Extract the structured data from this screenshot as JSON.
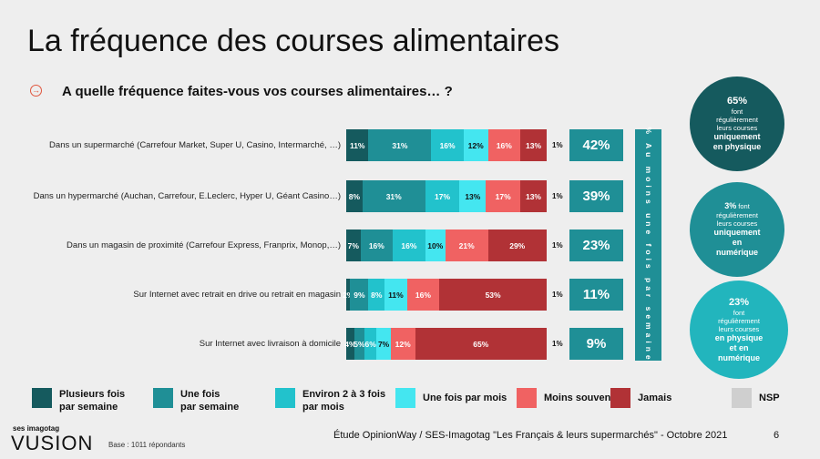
{
  "title": "La fréquence des courses alimentaires",
  "question": "A quelle fréquence faites-vous vos courses alimentaires… ?",
  "colors": {
    "plusieurs": "#155a5e",
    "une_fois": "#1f8f96",
    "environ": "#22c2cc",
    "une_par_mois": "#44e6f0",
    "moins": "#f06262",
    "jamais": "#b13236",
    "nsp": "#cfcfcf",
    "teal_box": "#1f8f96"
  },
  "chart_data": {
    "type": "bar",
    "orientation": "horizontal",
    "stacked": true,
    "categories": [
      "Dans un supermarché (Carrefour Market, Super U, Casino, Intermarché, …)",
      "Dans un hypermarché (Auchan, Carrefour, E.Leclerc, Hyper U, Géant Casino…)",
      "Dans un magasin de proximité (Carrefour Express, Franprix, Monop,…)",
      "Sur Internet avec retrait en drive ou retrait en magasin",
      "Sur Internet avec livraison à domicile"
    ],
    "series": [
      {
        "name": "Plusieurs fois par semaine",
        "values": [
          11,
          8,
          7,
          2,
          4
        ]
      },
      {
        "name": "Une fois par semaine",
        "values": [
          31,
          31,
          16,
          9,
          5
        ]
      },
      {
        "name": "Environ 2 à 3 fois par mois",
        "values": [
          16,
          17,
          16,
          8,
          6
        ]
      },
      {
        "name": "Une fois par mois",
        "values": [
          12,
          13,
          10,
          11,
          7
        ]
      },
      {
        "name": "Moins souvent",
        "values": [
          16,
          17,
          21,
          16,
          12
        ]
      },
      {
        "name": "Jamais",
        "values": [
          13,
          13,
          29,
          53,
          65
        ]
      },
      {
        "name": "NSP",
        "values": [
          1,
          1,
          1,
          1,
          1
        ]
      }
    ],
    "legend_position": "bottom",
    "summary_label": "% Au moins une fois par semaine",
    "summary_values": [
      "42%",
      "39%",
      "23%",
      "11%",
      "9%"
    ]
  },
  "circles": [
    {
      "value": "65%",
      "lines": [
        "font",
        "régulièrement",
        "leurs courses"
      ],
      "emph": [
        "uniquement",
        "en physique"
      ],
      "color": "#155a5e"
    },
    {
      "value": "3%",
      "value_suffix": " font",
      "lines": [
        "régulièrement",
        "leurs courses"
      ],
      "emph": [
        "uniquement",
        "en",
        "numérique"
      ],
      "color": "#1f8f96"
    },
    {
      "value": "23%",
      "lines": [
        "font",
        "régulièrement",
        "leurs courses"
      ],
      "emph": [
        "en physique",
        "et en",
        "numérique"
      ],
      "color": "#22b5bd"
    }
  ],
  "legend": [
    {
      "label": "Plusieurs fois par semaine",
      "line1": "Plusieurs fois",
      "line2": "par semaine"
    },
    {
      "label": "Une fois par semaine",
      "line1": "Une fois",
      "line2": "par semaine"
    },
    {
      "label": "Environ 2 à 3 fois par mois",
      "line1": "Environ 2 à 3 fois",
      "line2": "par mois"
    },
    {
      "label": "Une fois par mois",
      "line1": "Une fois par mois",
      "line2": ""
    },
    {
      "label": "Moins souvent",
      "line1": "Moins souvent",
      "line2": ""
    },
    {
      "label": "Jamais",
      "line1": "Jamais",
      "line2": ""
    },
    {
      "label": "NSP",
      "line1": "NSP",
      "line2": ""
    }
  ],
  "footer": {
    "brand_small": "ses imagotag",
    "brand": "VUSION",
    "base": "Base : 1011 répondants",
    "source": "Étude OpinionWay / SES-Imagotag \"Les Français & leurs supermarchés\" - Octobre 2021",
    "page": "6"
  }
}
